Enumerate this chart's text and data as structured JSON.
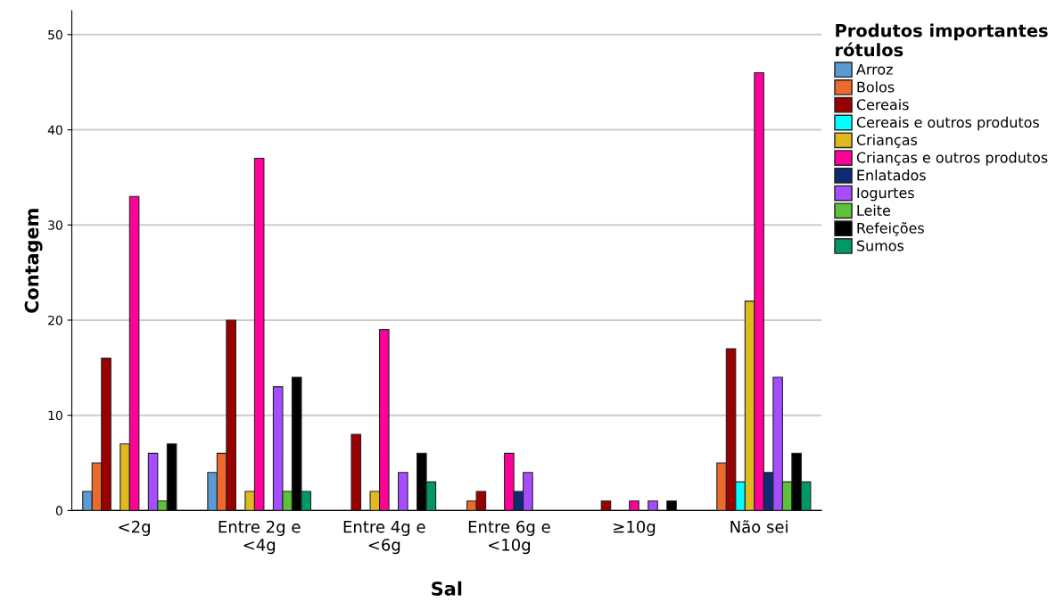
{
  "chart_data": {
    "type": "bar",
    "xlabel": "Sal",
    "ylabel": "Contagem",
    "legend_title": "Produtos importantes\nrótulos",
    "categories": [
      "<2g",
      "Entre 2g e\n<4g",
      "Entre 4g e\n<6g",
      "Entre 6g e\n<10g",
      "≥10g",
      "Não sei"
    ],
    "series": [
      {
        "name": "Arroz",
        "color": "#5b9bd5",
        "values": [
          2,
          4,
          null,
          null,
          null,
          null
        ]
      },
      {
        "name": "Bolos",
        "color": "#ed6a2c",
        "values": [
          5,
          6,
          null,
          1,
          null,
          5
        ]
      },
      {
        "name": "Cereais",
        "color": "#990000",
        "values": [
          16,
          20,
          8,
          2,
          1,
          17
        ]
      },
      {
        "name": "Cereais e outros produtos",
        "color": "#00ffff",
        "values": [
          null,
          null,
          null,
          null,
          null,
          3
        ]
      },
      {
        "name": "Crianças",
        "color": "#e0b820",
        "values": [
          7,
          2,
          2,
          null,
          null,
          22
        ]
      },
      {
        "name": "Crianças e outros produtos",
        "color": "#ff0099",
        "values": [
          33,
          37,
          19,
          6,
          1,
          46
        ]
      },
      {
        "name": "Enlatados",
        "color": "#0d2a73",
        "values": [
          null,
          null,
          null,
          2,
          null,
          4
        ]
      },
      {
        "name": "Iogurtes",
        "color": "#a64dff",
        "values": [
          6,
          13,
          4,
          4,
          1,
          14
        ]
      },
      {
        "name": "Leite",
        "color": "#5cc23a",
        "values": [
          1,
          2,
          null,
          null,
          null,
          3
        ]
      },
      {
        "name": "Refeições",
        "color": "#000000",
        "values": [
          7,
          14,
          6,
          null,
          1,
          6
        ]
      },
      {
        "name": "Sumos",
        "color": "#009966",
        "values": [
          null,
          2,
          3,
          null,
          null,
          3
        ]
      }
    ],
    "ylim": [
      0,
      52.5
    ],
    "yticks": [
      0,
      10,
      20,
      30,
      40,
      50
    ],
    "grid": "y",
    "legend": "top right"
  }
}
